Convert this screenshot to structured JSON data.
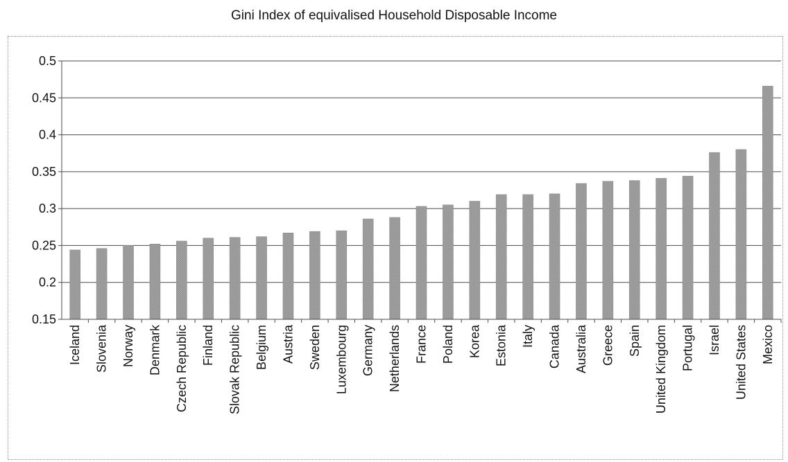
{
  "chart_data": {
    "type": "bar",
    "title": "Gini Index of equivalised Household Disposable Income",
    "xlabel": "",
    "ylabel": "",
    "ylim": [
      0.15,
      0.5
    ],
    "yticks": [
      "0.15",
      "0.2",
      "0.25",
      "0.3",
      "0.35",
      "0.4",
      "0.45",
      "0.5"
    ],
    "grid": true,
    "bar_color": "#a3a3a3",
    "categories": [
      "Iceland",
      "Slovenia",
      "Norway",
      "Denmark",
      "Czech Republic",
      "Finland",
      "Slovak Republic",
      "Belgium",
      "Austria",
      "Sweden",
      "Luxembourg",
      "Germany",
      "Netherlands",
      "France",
      "Poland",
      "Korea",
      "Estonia",
      "Italy",
      "Canada",
      "Australia",
      "Greece",
      "Spain",
      "United Kingdom",
      "Portugal",
      "Israel",
      "United States",
      "Mexico"
    ],
    "values": [
      0.244,
      0.246,
      0.25,
      0.252,
      0.256,
      0.26,
      0.261,
      0.262,
      0.267,
      0.269,
      0.27,
      0.286,
      0.288,
      0.303,
      0.305,
      0.31,
      0.319,
      0.319,
      0.32,
      0.334,
      0.337,
      0.338,
      0.341,
      0.344,
      0.376,
      0.38,
      0.466
    ]
  }
}
